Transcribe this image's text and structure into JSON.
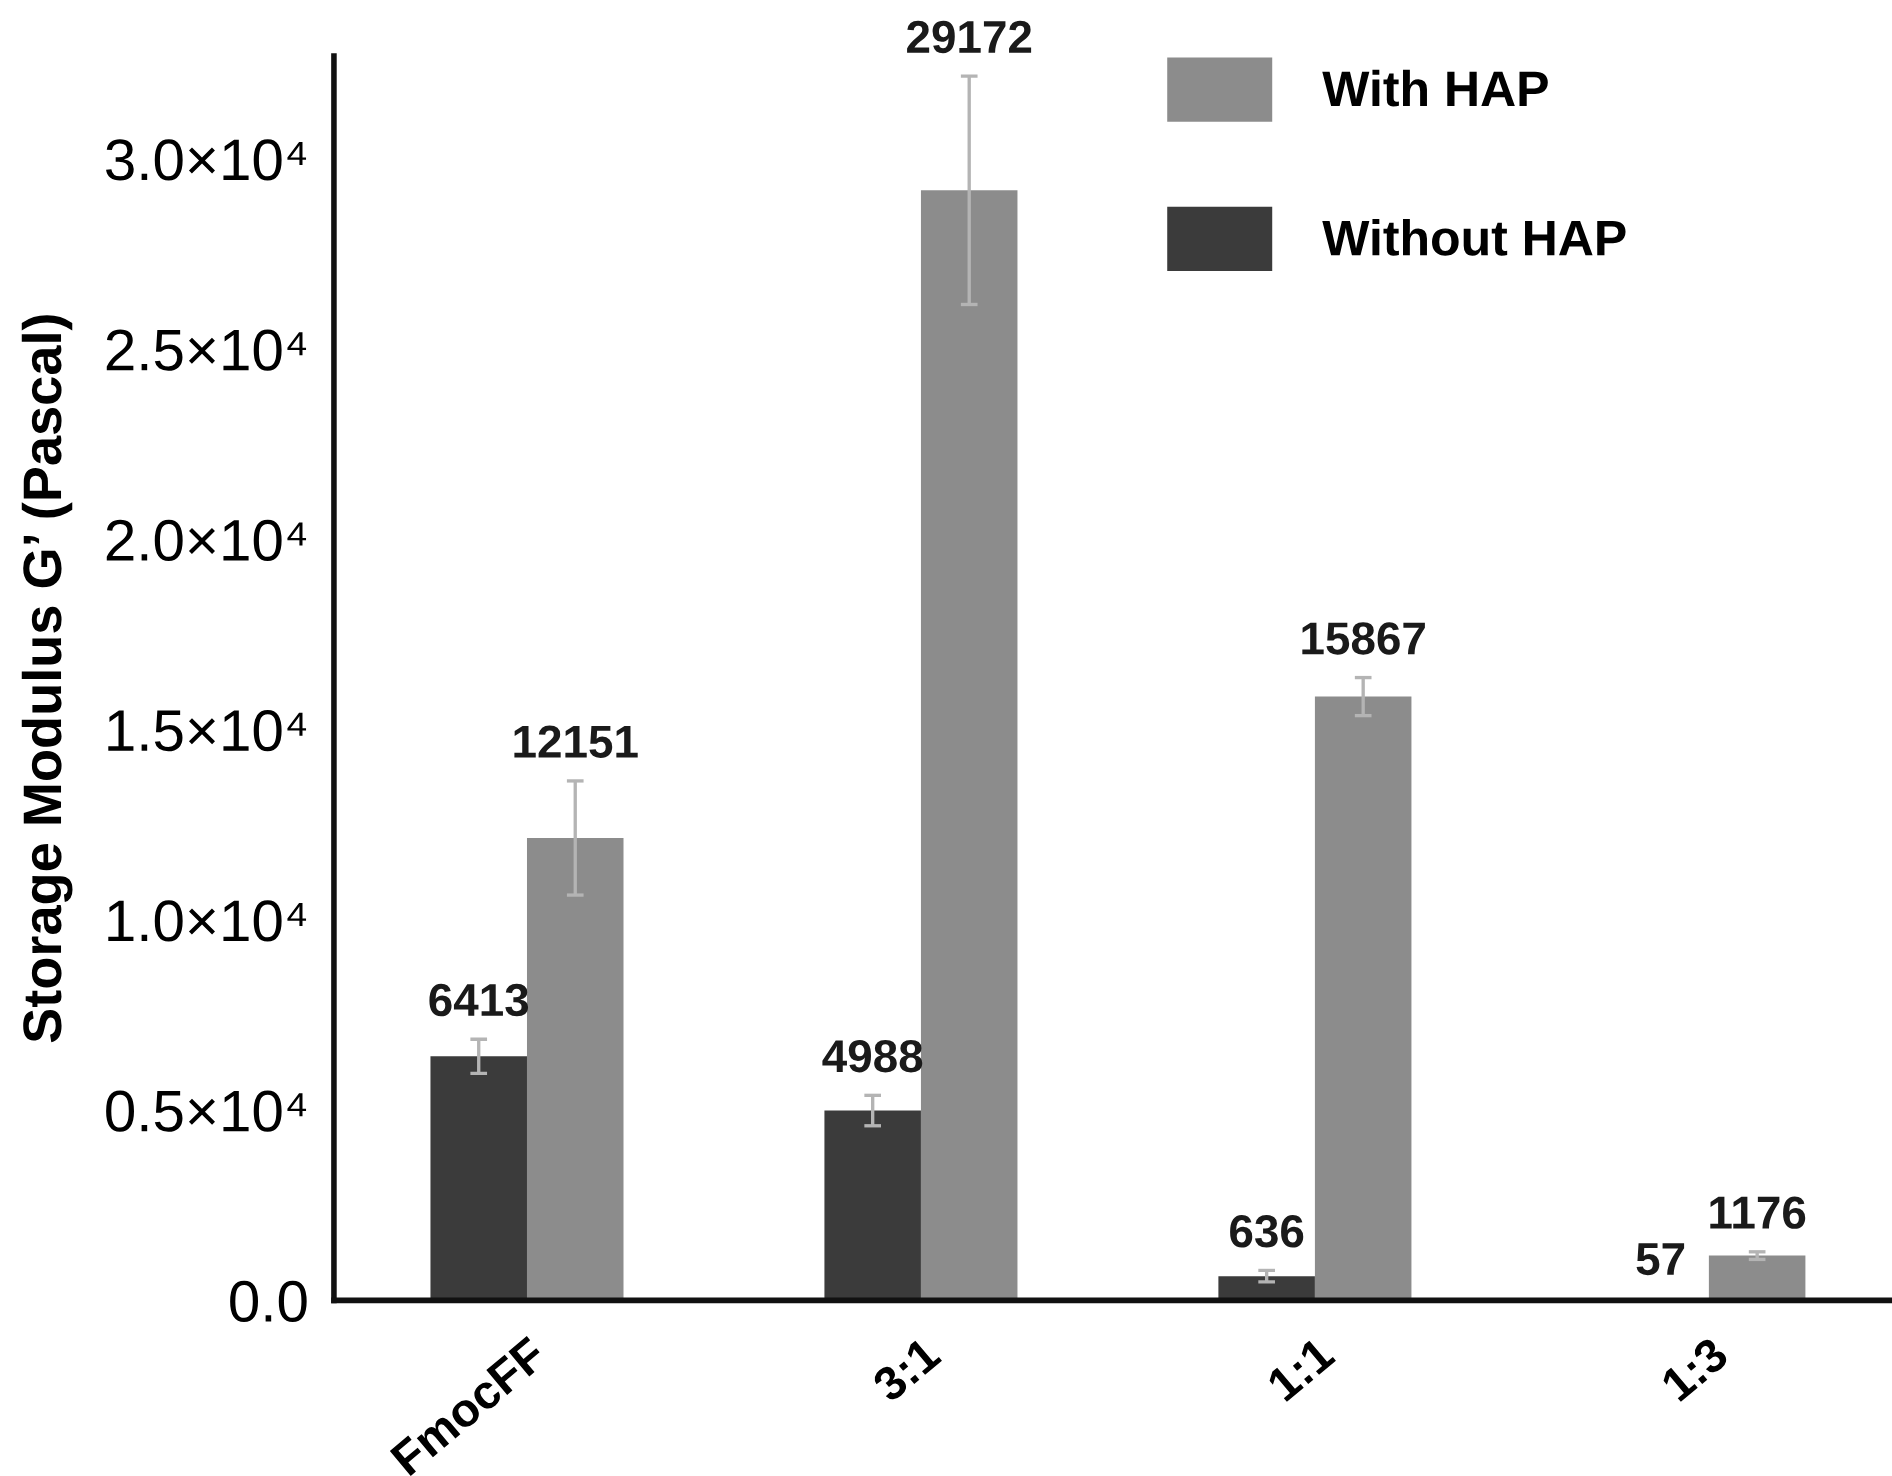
{
  "chart_data": {
    "type": "bar",
    "ylabel": "Storage Modulus G’ (Pascal)",
    "categories": [
      "FmocFF",
      "3:1",
      "1:1",
      "1:3"
    ],
    "series": [
      {
        "name": "Without HAP",
        "color": "#3b3b3b",
        "values": [
          6413,
          4988,
          636,
          57
        ],
        "errors": [
          450,
          400,
          150,
          null
        ]
      },
      {
        "name": "With HAP",
        "color": "#8c8c8c",
        "values": [
          12151,
          29172,
          15867,
          1176
        ],
        "errors": [
          1500,
          3000,
          500,
          100
        ]
      }
    ],
    "ylim": [
      0,
      32700
    ],
    "yticks": [
      {
        "value": 0,
        "label": "0.0"
      },
      {
        "value": 5000,
        "label": "0.5×10⁴"
      },
      {
        "value": 10000,
        "label": "1.0×10⁴"
      },
      {
        "value": 15000,
        "label": "1.5×10⁴"
      },
      {
        "value": 20000,
        "label": "2.0×10⁴"
      },
      {
        "value": 25000,
        "label": "2.5×10⁴"
      },
      {
        "value": 30000,
        "label": "3.0×10⁴"
      }
    ],
    "data_labels": true,
    "legend": "top right",
    "grid": false
  }
}
